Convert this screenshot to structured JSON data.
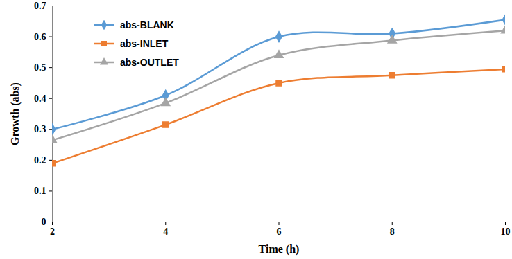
{
  "chart_data": {
    "type": "line",
    "x_label": "Time (h)",
    "y_label": "Growth (abs)",
    "x": [
      2,
      4,
      6,
      8,
      10
    ],
    "series": [
      {
        "name": "abs-BLANK",
        "color": "#5B9BD5",
        "marker": "diamond",
        "values": [
          0.3,
          0.41,
          0.6,
          0.61,
          0.655
        ]
      },
      {
        "name": "abs-INLET",
        "color": "#ED7D31",
        "marker": "square",
        "values": [
          0.19,
          0.315,
          0.45,
          0.475,
          0.495
        ]
      },
      {
        "name": "abs-OUTLET",
        "color": "#A5A5A5",
        "marker": "triangle",
        "values": [
          0.265,
          0.385,
          0.54,
          0.588,
          0.62
        ]
      }
    ],
    "xlim": [
      2,
      10
    ],
    "xticks": [
      2,
      4,
      6,
      8,
      10
    ],
    "ylim": [
      0,
      0.7
    ],
    "yticks": [
      0,
      0.1,
      0.2,
      0.3,
      0.4,
      0.5,
      0.6,
      0.7
    ],
    "grid": false,
    "legend": "upper left"
  }
}
